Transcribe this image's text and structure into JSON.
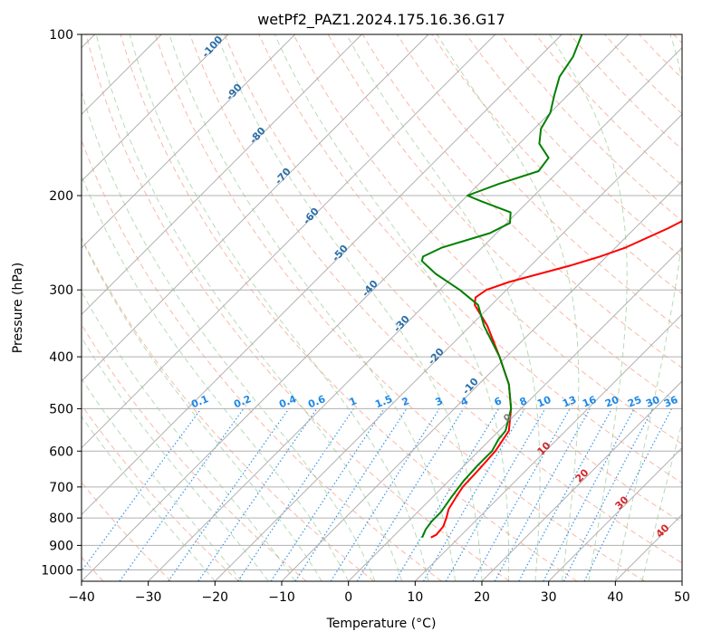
{
  "chart_data": {
    "type": "line",
    "title": "wetPf2_PAZ1.2024.175.16.36.G17",
    "xlabel": "Temperature (°C)",
    "ylabel": "Pressure (hPa)",
    "xlim": [
      -40,
      50
    ],
    "ylim": [
      1050,
      100
    ],
    "y_scale": "log",
    "x_ticks": [
      -40,
      -30,
      -20,
      -10,
      0,
      10,
      20,
      30,
      40,
      50
    ],
    "y_ticks": [
      100,
      200,
      300,
      400,
      500,
      600,
      700,
      800,
      900,
      1000
    ],
    "grid": true,
    "skew": "skew-T log-p",
    "series": [
      {
        "color": "#ff0000",
        "p": [
          870,
          860,
          830,
          800,
          770,
          730,
          700,
          650,
          600,
          550,
          500,
          450,
          400,
          350,
          320,
          310,
          300,
          290,
          280,
          270,
          260,
          250,
          230,
          210,
          200,
          190,
          170,
          160,
          150,
          140,
          130,
          120,
          110,
          105,
          100
        ],
        "t": [
          5.8,
          6.2,
          6.0,
          5.2,
          4.2,
          3.5,
          3.0,
          2.8,
          2.5,
          1.5,
          -1.5,
          -5.5,
          -11.0,
          -17.5,
          -22.5,
          -23.5,
          -23.0,
          -20.8,
          -17.5,
          -14.0,
          -11.0,
          -8.5,
          -5.0,
          -2.0,
          -1.0,
          -1.5,
          -3.0,
          -4.5,
          -6.0,
          -8.5,
          -10.5,
          -13.0,
          -16.0,
          -17.5,
          -20.0
        ]
      },
      {
        "color": "#008000",
        "p": [
          870,
          840,
          810,
          780,
          730,
          680,
          640,
          600,
          570,
          550,
          500,
          450,
          400,
          350,
          320,
          300,
          280,
          265,
          260,
          250,
          235,
          225,
          215,
          205,
          200,
          190,
          180,
          170,
          160,
          150,
          140,
          130,
          120,
          110,
          100
        ],
        "t": [
          4.5,
          3.8,
          3.5,
          3.5,
          2.8,
          2.2,
          2.0,
          2.0,
          1.2,
          1.0,
          -1.5,
          -5.5,
          -11.0,
          -18.0,
          -22.0,
          -27.0,
          -33.0,
          -37.0,
          -37.5,
          -36.0,
          -31.0,
          -29.5,
          -31.0,
          -37.0,
          -40.0,
          -37.0,
          -33.0,
          -33.5,
          -37.0,
          -39.0,
          -40.0,
          -42.0,
          -44.0,
          -45.0,
          -47.0
        ]
      }
    ],
    "annotations": {
      "dry_adiabats": [
        "-100",
        "-90",
        "-80",
        "-70",
        "-60",
        "-50",
        "-40",
        "-30",
        "-20",
        "-10"
      ],
      "mixing_ratios": [
        "0.1",
        "0.2",
        "0.4",
        "0.6",
        "1",
        "1.5",
        "2",
        "3",
        "4",
        "6",
        "8",
        "10",
        "13",
        "16",
        "20",
        "25",
        "30",
        "36"
      ],
      "moist_adiabats": [
        "0",
        "10",
        "20",
        "30",
        "40"
      ]
    },
    "colors": {
      "dry_adiabat": "#f08060",
      "moist_adiabat": "#60b060",
      "mixing_ratio": "#1e88e5",
      "isotherm_zero": "#d2b48c",
      "grid": "#b0b0b0"
    }
  }
}
